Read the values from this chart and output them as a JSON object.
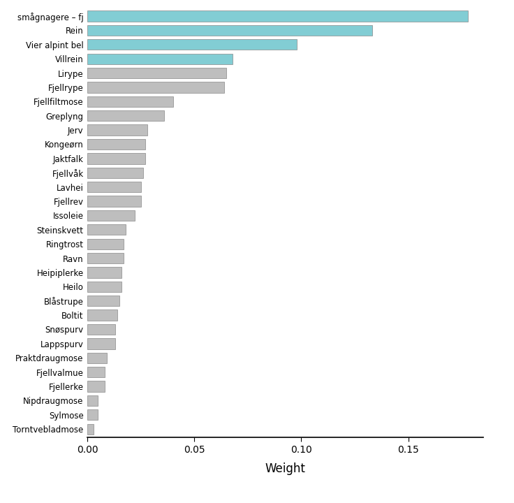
{
  "categories": [
    "smågnagere – fj",
    "Rein",
    "Vier alpint bel",
    "Villrein",
    "Lirype",
    "Fjellrype",
    "Fjellfiltmose",
    "Greplyng",
    "Jerv",
    "Kongeørn",
    "Jaktfalk",
    "Fjellvåk",
    "Lavhei",
    "Fjellrev",
    "Issoleie",
    "Steinskvett",
    "Ringtrost",
    "Ravn",
    "Heipiplerke",
    "Heilo",
    "Blåstrupe",
    "Boltit",
    "Snøspurv",
    "Lappspurv",
    "Praktdraugmose",
    "Fjellvalmue",
    "Fjellerke",
    "Nipdraugmose",
    "Sylmose",
    "Torntvebladmose"
  ],
  "values": [
    0.178,
    0.133,
    0.098,
    0.068,
    0.065,
    0.064,
    0.04,
    0.036,
    0.028,
    0.027,
    0.027,
    0.026,
    0.025,
    0.025,
    0.022,
    0.018,
    0.017,
    0.017,
    0.016,
    0.016,
    0.015,
    0.014,
    0.013,
    0.013,
    0.009,
    0.008,
    0.008,
    0.005,
    0.005,
    0.003
  ],
  "colors": [
    "#82CDD4",
    "#82CDD4",
    "#82CDD4",
    "#82CDD4",
    "#BEBEBE",
    "#BEBEBE",
    "#BEBEBE",
    "#BEBEBE",
    "#BEBEBE",
    "#BEBEBE",
    "#BEBEBE",
    "#BEBEBE",
    "#BEBEBE",
    "#BEBEBE",
    "#BEBEBE",
    "#BEBEBE",
    "#BEBEBE",
    "#BEBEBE",
    "#BEBEBE",
    "#BEBEBE",
    "#BEBEBE",
    "#BEBEBE",
    "#BEBEBE",
    "#BEBEBE",
    "#BEBEBE",
    "#BEBEBE",
    "#BEBEBE",
    "#BEBEBE",
    "#BEBEBE",
    "#BEBEBE"
  ],
  "edge_color": "#888888",
  "xlabel": "Weight",
  "xlim": [
    0,
    0.185
  ],
  "xticks": [
    0.0,
    0.05,
    0.1,
    0.15
  ],
  "background_color": "#FFFFFF",
  "bar_height": 0.75,
  "label_fontsize": 8.5,
  "xlabel_fontsize": 12,
  "tick_fontsize": 9.5
}
